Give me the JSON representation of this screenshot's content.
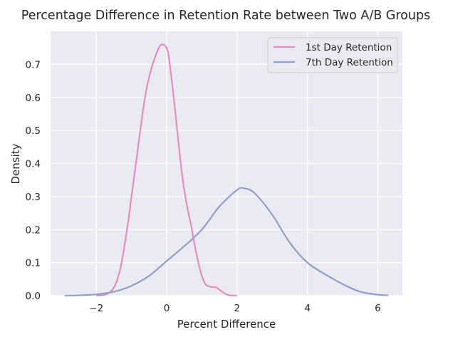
{
  "chart_data": {
    "type": "line",
    "title": "Percentage Difference in Retention Rate between Two A/B Groups",
    "xlabel": "Percent Difference",
    "ylabel": "Density",
    "xlim": [
      -3.3,
      6.7
    ],
    "ylim": [
      0,
      0.8
    ],
    "xticks": [
      -2,
      0,
      2,
      4,
      6
    ],
    "xtick_labels": [
      "−2",
      "0",
      "2",
      "4",
      "6"
    ],
    "yticks": [
      0.0,
      0.1,
      0.2,
      0.3,
      0.4,
      0.5,
      0.6,
      0.7
    ],
    "ytick_labels": [
      "0.0",
      "0.1",
      "0.2",
      "0.3",
      "0.4",
      "0.5",
      "0.6",
      "0.7"
    ],
    "grid": true,
    "legend_position": "top-right",
    "background": "#eaeaf2",
    "series": [
      {
        "name": "1st Day Retention",
        "color": "#e78ac3",
        "x": [
          -2.0,
          -1.8,
          -1.7,
          -1.6,
          -1.5,
          -1.4,
          -1.3,
          -1.2,
          -1.1,
          -1.0,
          -0.9,
          -0.8,
          -0.7,
          -0.6,
          -0.5,
          -0.4,
          -0.3,
          -0.2,
          -0.1,
          0.0,
          0.05,
          0.1,
          0.2,
          0.3,
          0.4,
          0.5,
          0.6,
          0.7,
          0.8,
          0.9,
          1.0,
          1.1,
          1.2,
          1.3,
          1.4,
          1.5,
          1.6,
          1.7,
          1.8,
          1.9,
          2.0
        ],
        "y": [
          0.0,
          0.002,
          0.005,
          0.012,
          0.025,
          0.05,
          0.09,
          0.15,
          0.22,
          0.3,
          0.38,
          0.46,
          0.54,
          0.61,
          0.66,
          0.7,
          0.73,
          0.755,
          0.76,
          0.75,
          0.73,
          0.69,
          0.6,
          0.5,
          0.4,
          0.32,
          0.26,
          0.21,
          0.15,
          0.1,
          0.06,
          0.035,
          0.028,
          0.026,
          0.025,
          0.018,
          0.01,
          0.004,
          0.001,
          0.0,
          0.0
        ]
      },
      {
        "name": "7th Day Retention",
        "color": "#8da0cb",
        "x": [
          -2.9,
          -2.5,
          -2.0,
          -1.5,
          -1.0,
          -0.5,
          0.0,
          0.5,
          1.0,
          1.5,
          2.0,
          2.2,
          2.5,
          3.0,
          3.5,
          4.0,
          4.5,
          5.0,
          5.5,
          6.0,
          6.3
        ],
        "y": [
          0.0,
          0.001,
          0.004,
          0.012,
          0.03,
          0.06,
          0.105,
          0.15,
          0.2,
          0.27,
          0.32,
          0.325,
          0.31,
          0.245,
          0.16,
          0.1,
          0.065,
          0.035,
          0.012,
          0.003,
          0.001
        ]
      }
    ]
  }
}
